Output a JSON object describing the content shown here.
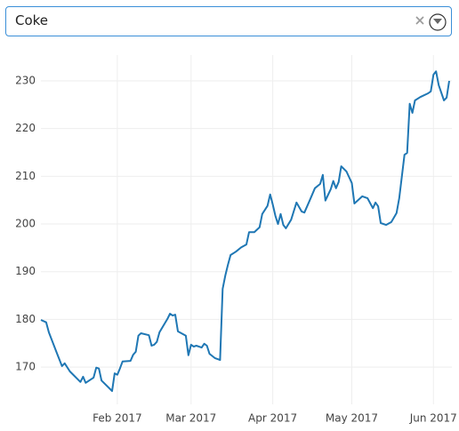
{
  "dropdown": {
    "value": "Coke"
  },
  "chart_data": {
    "type": "line",
    "color": "#1f77b4",
    "grid": true,
    "x": [
      "2017-01-03",
      "2017-01-05",
      "2017-01-06",
      "2017-01-09",
      "2017-01-11",
      "2017-01-12",
      "2017-01-14",
      "2017-01-18",
      "2017-01-19",
      "2017-01-20",
      "2017-01-23",
      "2017-01-24",
      "2017-01-25",
      "2017-01-26",
      "2017-01-30",
      "2017-01-31",
      "2017-02-01",
      "2017-02-02",
      "2017-02-03",
      "2017-02-06",
      "2017-02-07",
      "2017-02-08",
      "2017-02-09",
      "2017-02-10",
      "2017-02-13",
      "2017-02-14",
      "2017-02-15",
      "2017-02-16",
      "2017-02-17",
      "2017-02-20",
      "2017-02-21",
      "2017-02-22",
      "2017-02-23",
      "2017-02-24",
      "2017-02-27",
      "2017-02-28",
      "2017-03-01",
      "2017-03-02",
      "2017-03-03",
      "2017-03-05",
      "2017-03-06",
      "2017-03-07",
      "2017-03-08",
      "2017-03-10",
      "2017-03-12",
      "2017-03-13",
      "2017-03-14",
      "2017-03-15",
      "2017-03-16",
      "2017-03-18",
      "2017-03-20",
      "2017-03-22",
      "2017-03-23",
      "2017-03-25",
      "2017-03-27",
      "2017-03-28",
      "2017-03-30",
      "2017-03-31",
      "2017-04-01",
      "2017-04-02",
      "2017-04-03",
      "2017-04-04",
      "2017-04-05",
      "2017-04-06",
      "2017-04-08",
      "2017-04-10",
      "2017-04-12",
      "2017-04-13",
      "2017-04-15",
      "2017-04-17",
      "2017-04-19",
      "2017-04-20",
      "2017-04-21",
      "2017-04-23",
      "2017-04-24",
      "2017-04-25",
      "2017-04-26",
      "2017-04-27",
      "2017-04-29",
      "2017-05-01",
      "2017-05-02",
      "2017-05-05",
      "2017-05-07",
      "2017-05-09",
      "2017-05-10",
      "2017-05-11",
      "2017-05-12",
      "2017-05-14",
      "2017-05-16",
      "2017-05-18",
      "2017-05-19",
      "2017-05-21",
      "2017-05-22",
      "2017-05-23",
      "2017-05-24",
      "2017-05-25",
      "2017-05-27",
      "2017-05-30",
      "2017-05-31",
      "2017-06-01",
      "2017-06-02",
      "2017-06-03",
      "2017-06-05",
      "2017-06-06",
      "2017-06-07"
    ],
    "values": [
      179.9,
      179.4,
      177.3,
      173.0,
      170.2,
      170.8,
      169.1,
      166.9,
      168.0,
      166.7,
      167.8,
      169.9,
      169.7,
      167.2,
      165.0,
      168.7,
      168.4,
      169.7,
      171.2,
      171.3,
      172.6,
      173.2,
      176.6,
      177.1,
      176.7,
      174.5,
      174.7,
      175.3,
      177.3,
      180.1,
      181.2,
      180.8,
      181.0,
      177.5,
      176.6,
      172.5,
      174.7,
      174.3,
      174.5,
      174.1,
      174.9,
      174.5,
      172.8,
      171.9,
      171.5,
      186.4,
      189.2,
      191.5,
      193.5,
      194.2,
      195.1,
      195.7,
      198.3,
      198.3,
      199.3,
      202.1,
      203.8,
      206.2,
      204.1,
      201.7,
      200.0,
      202.1,
      199.8,
      199.1,
      200.9,
      204.5,
      202.6,
      202.4,
      204.9,
      207.5,
      208.4,
      210.3,
      204.9,
      207.3,
      209.0,
      207.5,
      208.8,
      212.1,
      211.0,
      208.6,
      204.3,
      205.8,
      205.4,
      203.3,
      204.5,
      203.7,
      200.2,
      199.8,
      200.4,
      202.3,
      205.4,
      214.5,
      214.9,
      225.2,
      223.3,
      225.9,
      226.6,
      227.4,
      227.8,
      231.3,
      232.0,
      229.1,
      225.9,
      226.5,
      230.0
    ],
    "xlim": [
      "2017-01-03",
      "2017-06-08"
    ],
    "xticks": [
      {
        "value": "2017-02-01",
        "label": "Feb 2017"
      },
      {
        "value": "2017-03-01",
        "label": "Mar 2017"
      },
      {
        "value": "2017-04-01",
        "label": "Apr 2017"
      },
      {
        "value": "2017-05-01",
        "label": "May 2017"
      },
      {
        "value": "2017-06-01",
        "label": "Jun 2017"
      }
    ],
    "ylim": [
      162.2,
      235.4
    ],
    "yticks": [
      170,
      180,
      190,
      200,
      210,
      220,
      230
    ]
  }
}
